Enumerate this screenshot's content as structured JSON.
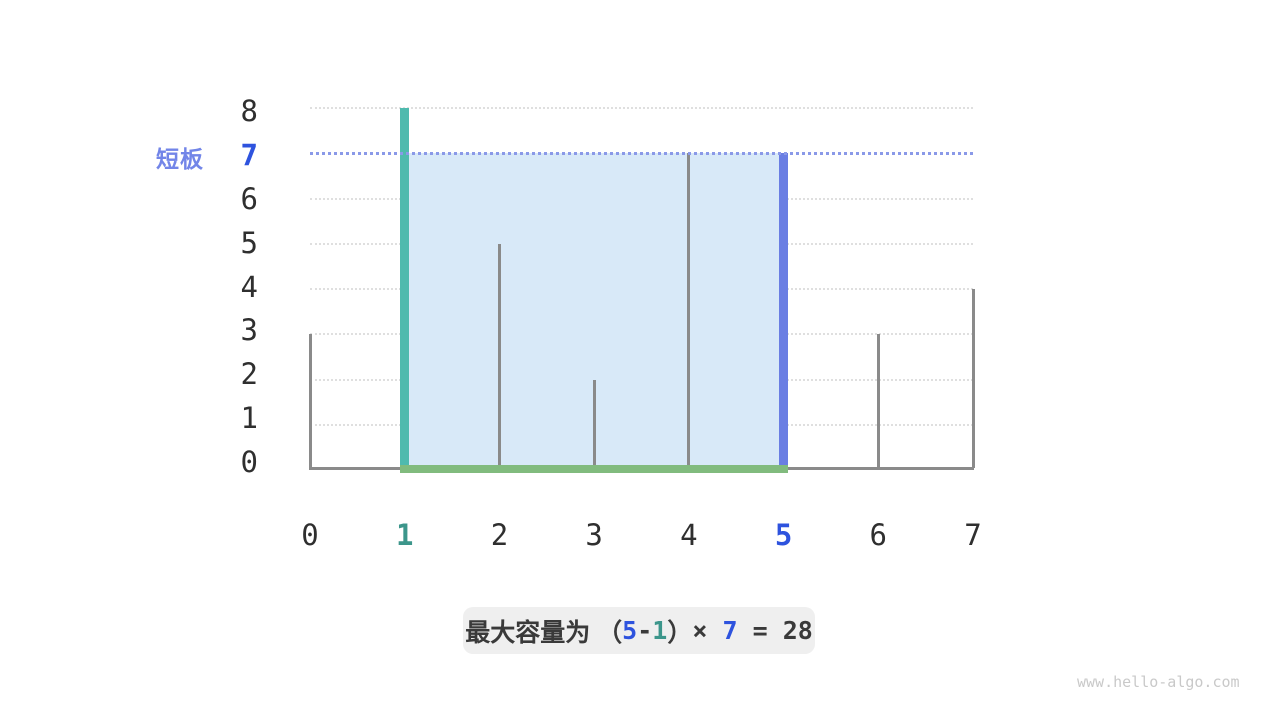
{
  "chart_data": {
    "type": "bar",
    "x": [
      0,
      1,
      2,
      3,
      4,
      5,
      6,
      7
    ],
    "heights": [
      3,
      8,
      5,
      2,
      7,
      7,
      3,
      4
    ],
    "xlim": [
      0,
      7
    ],
    "ylim": [
      0,
      8
    ],
    "x_tick_labels": [
      "0",
      "1",
      "2",
      "3",
      "4",
      "5",
      "6",
      "7"
    ],
    "y_tick_labels": [
      "0",
      "1",
      "2",
      "3",
      "4",
      "5",
      "6",
      "7",
      "8"
    ],
    "grid": true,
    "left_pointer": {
      "index": 1,
      "height": 8,
      "color": "#4FBAAE"
    },
    "right_pointer": {
      "index": 5,
      "height": 7,
      "color": "#6A7EE3"
    },
    "water": {
      "from_x": 1,
      "to_x": 5,
      "level": 7,
      "area": 28,
      "fill_color": "#D8E9F8",
      "range_color": "#81BB7E"
    },
    "short_board_label": "短板",
    "short_board_value": "7",
    "bar_color": "#8A8A8A",
    "axis_color": "#8A8A8A",
    "gridline_color": "#DFDFDF",
    "water_level_line_color": "#8A99E8",
    "tick_color": "#2F2F2F",
    "tick_highlight_blue": "#2E53DE",
    "tick_highlight_teal": "#3C968B"
  },
  "caption": {
    "background": "#EFEFEF",
    "parts": [
      {
        "text": "最大容量为 （",
        "color": "#3A3A3A",
        "bold": false,
        "mono": false
      },
      {
        "text": "5",
        "color": "#2E53DE",
        "bold": true,
        "mono": true
      },
      {
        "text": "-",
        "color": "#3A3A3A",
        "bold": true,
        "mono": true
      },
      {
        "text": "1",
        "color": "#3C968B",
        "bold": true,
        "mono": true
      },
      {
        "text": "）",
        "color": "#3A3A3A",
        "bold": false,
        "mono": false
      },
      {
        "text": "× ",
        "color": "#3A3A3A",
        "bold": false,
        "mono": true
      },
      {
        "text": "7",
        "color": "#2E53DE",
        "bold": true,
        "mono": true
      },
      {
        "text": " = ",
        "color": "#3A3A3A",
        "bold": false,
        "mono": true
      },
      {
        "text": "28",
        "color": "#3A3A3A",
        "bold": true,
        "mono": true
      }
    ]
  },
  "watermark": {
    "text": "www.hello-algo.com",
    "color": "#C9C9C9"
  }
}
